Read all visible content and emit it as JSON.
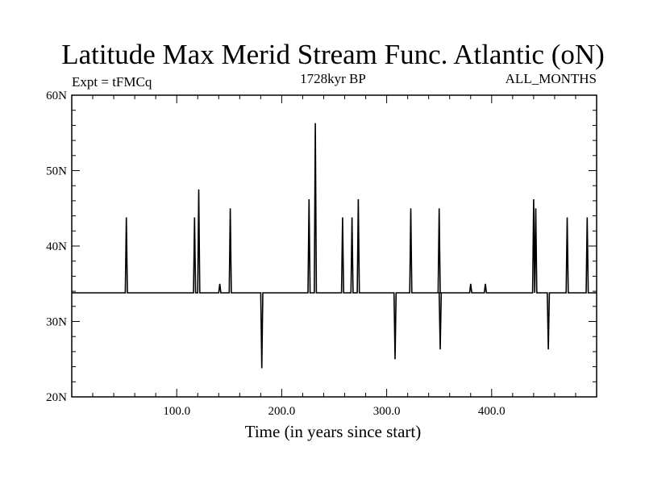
{
  "chart_data": {
    "type": "line",
    "title": "Latitude Max Merid Stream Func. Atlantic (oN)",
    "subtitle_left": "Expt = tFMCq",
    "subtitle_center": "1728kyr BP",
    "subtitle_right": "ALL_MONTHS",
    "xlabel": "Time (in years since start)",
    "ylabel": "",
    "xlim": [
      0,
      500
    ],
    "ylim": [
      20,
      60
    ],
    "x_ticks": [
      100,
      200,
      300,
      400
    ],
    "x_tick_labels": [
      "100.0",
      "200.0",
      "300.0",
      "400.0"
    ],
    "y_ticks": [
      20,
      30,
      40,
      50,
      60
    ],
    "y_tick_labels": [
      "20N",
      "30N",
      "40N",
      "50N",
      "60N"
    ],
    "grid": false,
    "baseline": 33.8,
    "spikes": [
      {
        "x": 52,
        "y": 43.8
      },
      {
        "x": 117,
        "y": 43.8
      },
      {
        "x": 121,
        "y": 47.5
      },
      {
        "x": 141,
        "y": 35.0
      },
      {
        "x": 151,
        "y": 45.0
      },
      {
        "x": 181,
        "y": 23.8
      },
      {
        "x": 226,
        "y": 46.2
      },
      {
        "x": 232,
        "y": 56.3
      },
      {
        "x": 258,
        "y": 43.8
      },
      {
        "x": 267,
        "y": 43.8
      },
      {
        "x": 273,
        "y": 46.2
      },
      {
        "x": 308,
        "y": 25.0
      },
      {
        "x": 323,
        "y": 45.0
      },
      {
        "x": 350,
        "y": 45.0
      },
      {
        "x": 351,
        "y": 26.3
      },
      {
        "x": 380,
        "y": 35.0
      },
      {
        "x": 394,
        "y": 35.0
      },
      {
        "x": 440,
        "y": 46.2
      },
      {
        "x": 442,
        "y": 45.0
      },
      {
        "x": 454,
        "y": 26.3
      },
      {
        "x": 472,
        "y": 43.8
      },
      {
        "x": 491,
        "y": 43.8
      }
    ]
  }
}
